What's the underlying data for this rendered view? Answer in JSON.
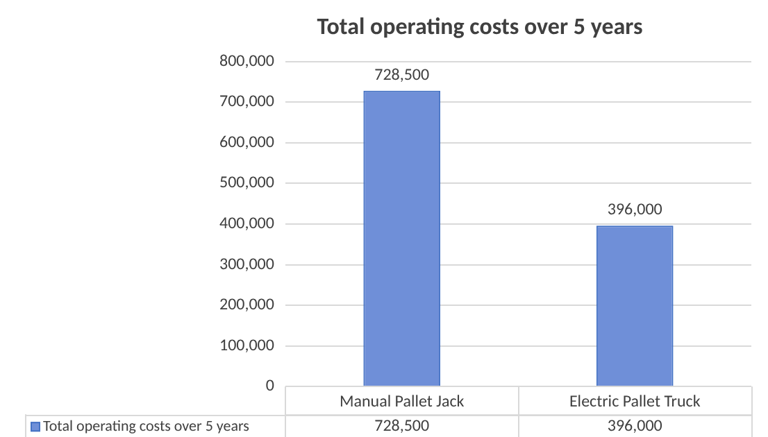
{
  "chart_data": {
    "type": "bar",
    "title": "Total operating costs over 5 years",
    "categories": [
      "Manual Pallet Jack",
      "Electric Pallet Truck"
    ],
    "series": [
      {
        "name": "Total operating costs over 5 years",
        "color": "#6f8fd8",
        "values": [
          728500,
          396000
        ],
        "value_labels": [
          "728,500",
          "396,000"
        ]
      }
    ],
    "ylim": [
      0,
      800000
    ],
    "yticks": [
      0,
      {
        "value": 100000,
        "label": "100,000"
      },
      {
        "value": 200000,
        "label": "200,000"
      },
      {
        "value": 300000,
        "label": "300,000"
      },
      {
        "value": 400000,
        "label": "400,000"
      },
      {
        "value": 500000,
        "label": "500,000"
      },
      {
        "value": 600000,
        "label": "600,000"
      },
      {
        "value": 700000,
        "label": "700,000"
      },
      {
        "value": 800000,
        "label": "800,000"
      }
    ],
    "grid": "y",
    "legend": "bottom"
  }
}
